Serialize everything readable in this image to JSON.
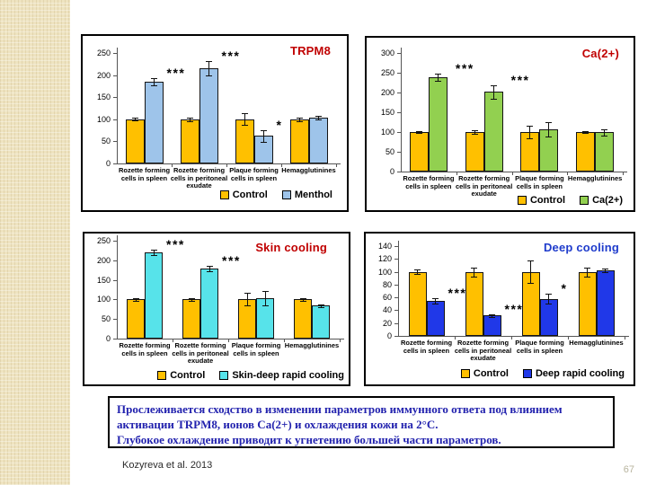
{
  "slide": {
    "summary": {
      "lines": [
        "Прослеживается сходство в изменении параметров иммунного ответа под влиянием",
        "активации TRPM8,  ионов Са(2+)  и  охлаждения кожи на 2°С.",
        "Глубокое охлаждение приводит к угнетению большей части параметров."
      ],
      "text_color": "#2222ae"
    },
    "citation": "Kozyreva et al. 2013",
    "page_number": "67"
  },
  "chart_data": [
    {
      "type": "bar",
      "title": "TRPM8",
      "title_color": "#c00000",
      "categories": [
        "Rozette forming cells in spleen",
        "Rozette forming cells in peritoneal exudate",
        "Plaque forming cells in spleen",
        "Hemagglutinines"
      ],
      "series": [
        {
          "name": "Control",
          "color": "#ffc000",
          "values": [
            100,
            100,
            100,
            100
          ],
          "errors": [
            3,
            4,
            13,
            4
          ]
        },
        {
          "name": "Menthol",
          "color": "#9ec4ea",
          "values": [
            185,
            215,
            62,
            103
          ],
          "errors": [
            8,
            16,
            13,
            4
          ]
        }
      ],
      "significance": [
        "***",
        "***",
        "*",
        ""
      ],
      "ylim": [
        0,
        250
      ],
      "yticks": [
        0,
        50,
        100,
        150,
        200,
        250
      ],
      "grid": false,
      "legend_position": "bottom-right"
    },
    {
      "type": "bar",
      "title": "Ca(2+)",
      "title_color": "#c00000",
      "categories": [
        "Rozette forming cells in spleen",
        "Rozette forming cells in peritoneal exudate",
        "Plaque forming cells in spleen",
        "Hemagglutinines"
      ],
      "series": [
        {
          "name": "Control",
          "color": "#ffc000",
          "values": [
            100,
            100,
            100,
            100
          ],
          "errors": [
            3,
            4,
            15,
            3
          ]
        },
        {
          "name": "Ca(2+)",
          "color": "#92d050",
          "values": [
            238,
            202,
            107,
            99
          ],
          "errors": [
            9,
            17,
            18,
            7
          ]
        }
      ],
      "significance": [
        "***",
        "***",
        "",
        ""
      ],
      "ylim": [
        0,
        300
      ],
      "yticks": [
        0,
        50,
        100,
        150,
        200,
        250,
        300
      ],
      "grid": false,
      "legend_position": "bottom-right"
    },
    {
      "type": "bar",
      "title": "Skin cooling",
      "title_color": "#c00000",
      "categories": [
        "Rozette forming cells in spleen",
        "Rozette forming cells in peritoneal exudate",
        "Plaque forming cells in spleen",
        "Hemagglutinines"
      ],
      "series": [
        {
          "name": "Control",
          "color": "#ffc000",
          "values": [
            100,
            100,
            100,
            100
          ],
          "errors": [
            4,
            4,
            16,
            4
          ]
        },
        {
          "name": "Skin-deep rapid cooling",
          "color": "#57e3ea",
          "values": [
            220,
            178,
            103,
            84
          ],
          "errors": [
            6,
            7,
            18,
            3
          ]
        }
      ],
      "significance": [
        "***",
        "***",
        "",
        ""
      ],
      "ylim": [
        0,
        250
      ],
      "yticks": [
        0,
        50,
        100,
        150,
        200,
        250
      ],
      "grid": false,
      "legend_position": "bottom-right"
    },
    {
      "type": "bar",
      "title": "Deep cooling",
      "title_color": "#1f3ccc",
      "categories": [
        "Rozette forming cells in spleen",
        "Rozette forming cells in peritoneal exudate",
        "Plaque forming cells in spleen",
        "Hemagglutinines"
      ],
      "series": [
        {
          "name": "Control",
          "color": "#ffc000",
          "values": [
            100,
            100,
            100,
            100
          ],
          "errors": [
            4,
            7,
            17,
            7
          ]
        },
        {
          "name": "Deep rapid cooling",
          "color": "#2038e8",
          "values": [
            55,
            32,
            58,
            102
          ],
          "errors": [
            4,
            2,
            8,
            3
          ]
        }
      ],
      "significance": [
        "***",
        "***",
        "*",
        ""
      ],
      "ylim": [
        0,
        140
      ],
      "yticks": [
        0,
        20,
        40,
        60,
        80,
        100,
        120,
        140
      ],
      "grid": false,
      "legend_position": "bottom-right"
    }
  ]
}
